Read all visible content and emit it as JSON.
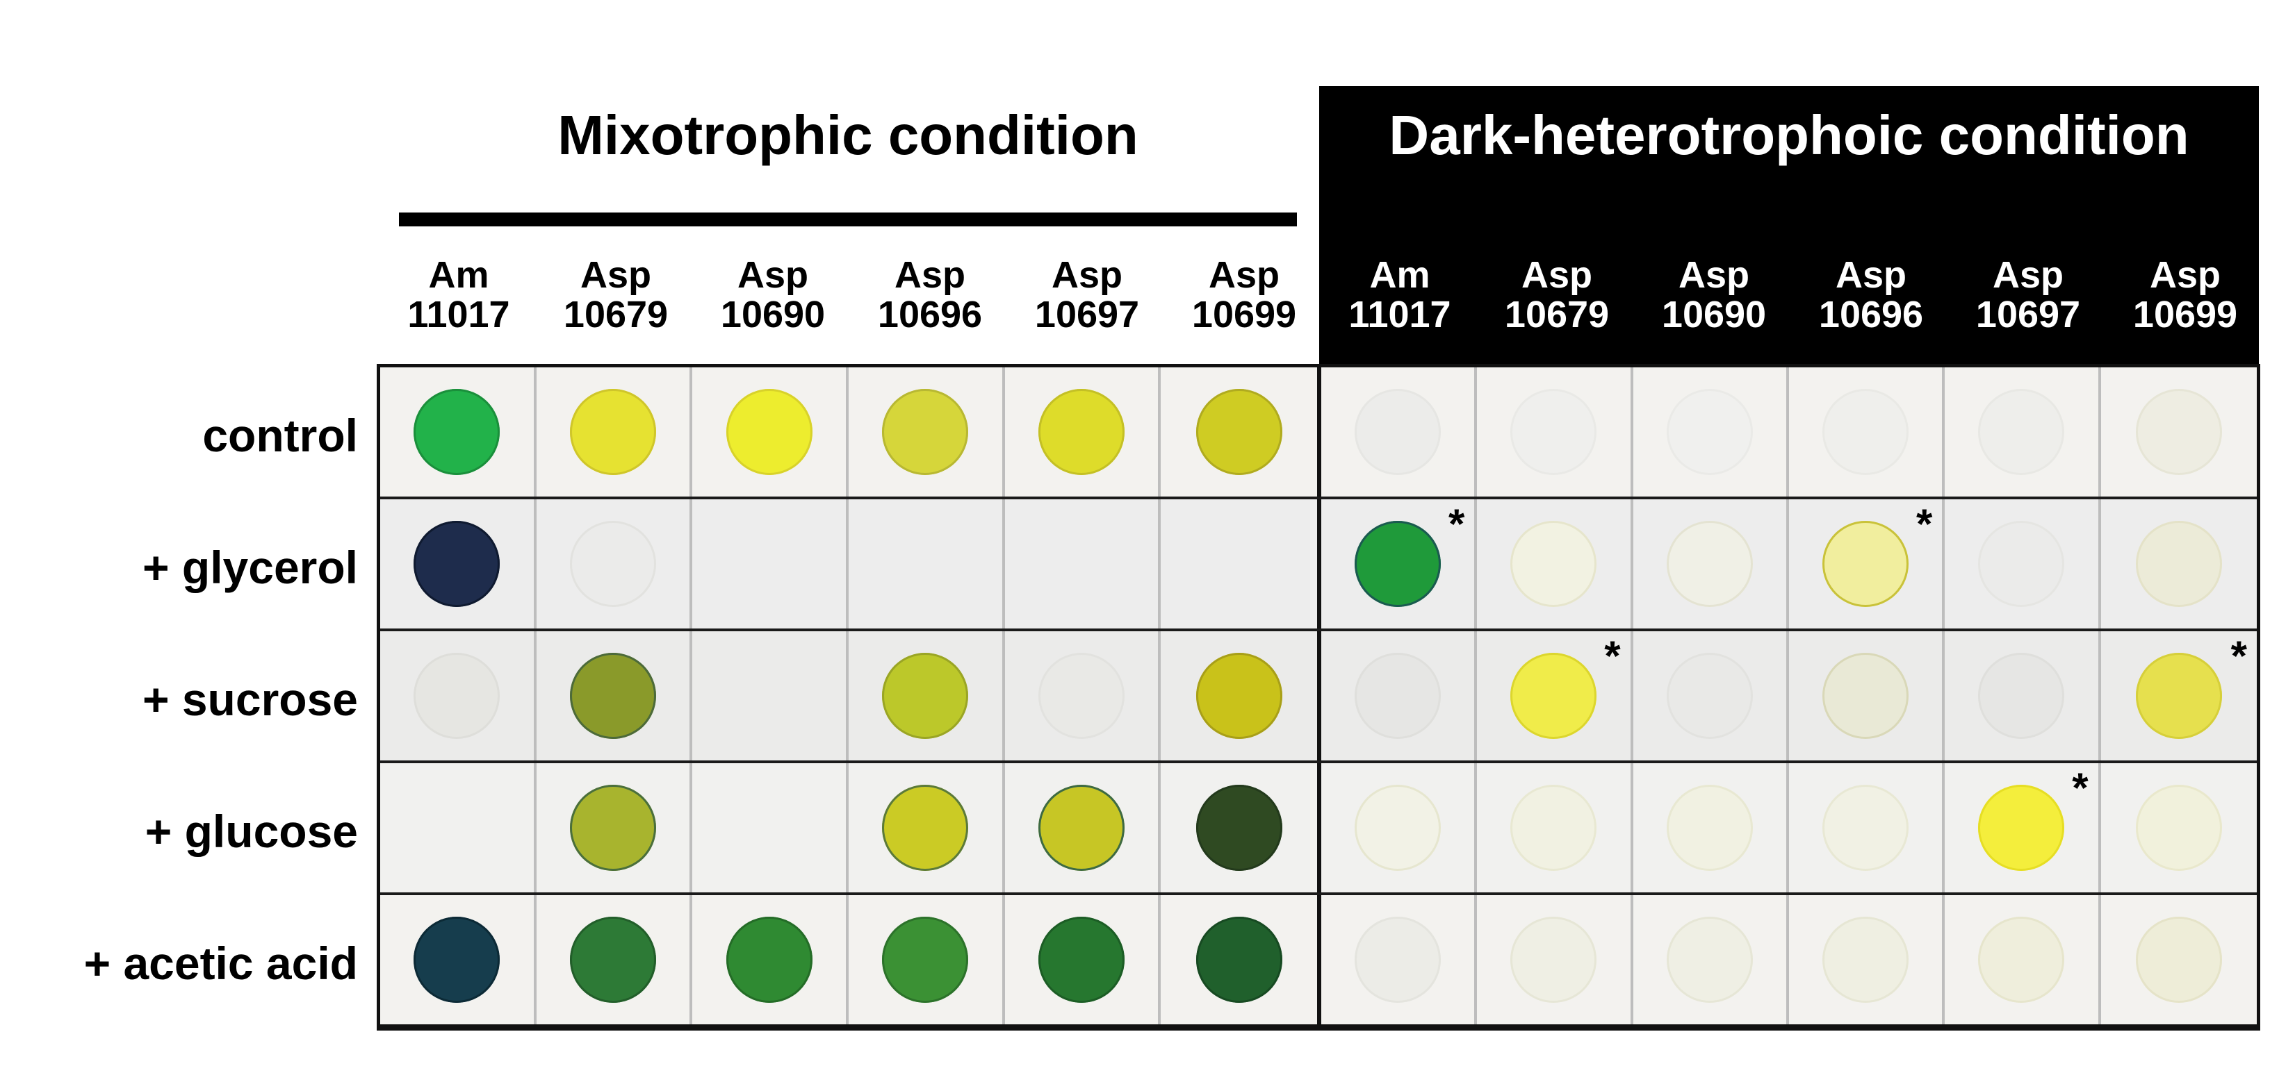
{
  "conditions": {
    "mixotrophic": "Mixotrophic condition",
    "dark": "Dark-heterotrophoic condition"
  },
  "strains": [
    {
      "genus": "Am",
      "number": "11017"
    },
    {
      "genus": "Asp",
      "number": "10679"
    },
    {
      "genus": "Asp",
      "number": "10690"
    },
    {
      "genus": "Asp",
      "number": "10696"
    },
    {
      "genus": "Asp",
      "number": "10697"
    },
    {
      "genus": "Asp",
      "number": "10699"
    }
  ],
  "treatments": [
    "control",
    "+ glycerol",
    "+ sucrose",
    "+ glucose",
    "+ acetic acid"
  ],
  "star_mark": "*",
  "row_bg": [
    "#f3f2ef",
    "#ededed",
    "#ebebea",
    "#f1f1ef",
    "#f3f2ef"
  ],
  "spots": {
    "mixotrophic": [
      [
        {
          "color": "#22b24a",
          "edge": "#1a8f3b"
        },
        {
          "color": "#e6e231",
          "edge": "#cfc62a"
        },
        {
          "color": "#eded2e",
          "edge": "#d8d22a"
        },
        {
          "color": "#d6d63a",
          "edge": "#b8b832"
        },
        {
          "color": "#dedc2a",
          "edge": "#c4c025"
        },
        {
          "color": "#cfcc23",
          "edge": "#b0ab1f"
        }
      ],
      [
        {
          "color": "#1e2c4c",
          "edge": "#0f1a30"
        },
        {
          "color": "#ebebea",
          "edge": "#e2e2df"
        },
        null,
        null,
        null,
        null
      ],
      [
        {
          "color": "#e6e6e2",
          "edge": "#dededa"
        },
        {
          "color": "#8a9a2a",
          "edge": "#4c6a3a"
        },
        null,
        {
          "color": "#bcc82a",
          "edge": "#9aa525"
        },
        {
          "color": "#e9e9e6",
          "edge": "#e2e2df"
        },
        {
          "color": "#c9c21a",
          "edge": "#a89f18"
        }
      ],
      [
        null,
        {
          "color": "#a8b42e",
          "edge": "#4a6f3c"
        },
        null,
        {
          "color": "#cbcb25",
          "edge": "#5b7a3a"
        },
        {
          "color": "#c7c625",
          "edge": "#3d6a44"
        },
        {
          "color": "#2f4a22",
          "edge": "#233a1c"
        }
      ],
      [
        {
          "color": "#163d4d",
          "edge": "#0c2a36"
        },
        {
          "color": "#2d7a36",
          "edge": "#225e2a"
        },
        {
          "color": "#2f8a32",
          "edge": "#246c27"
        },
        {
          "color": "#3b9134",
          "edge": "#2c722a"
        },
        {
          "color": "#26772f",
          "edge": "#1c5d25"
        },
        {
          "color": "#20602c",
          "edge": "#174a22"
        }
      ]
    ],
    "dark": [
      [
        {
          "color": "#ececea",
          "edge": "#e6e6e3"
        },
        {
          "color": "#efefed",
          "edge": "#e9e9e6"
        },
        {
          "color": "#f0f0ee",
          "edge": "#eaeae7"
        },
        {
          "color": "#efefec",
          "edge": "#e9e9e5"
        },
        {
          "color": "#eeeeeb",
          "edge": "#e8e8e4"
        },
        {
          "color": "#eeede2",
          "edge": "#e6e5d6"
        }
      ],
      [
        {
          "color": "#1f9a3a",
          "edge": "#1a5a50",
          "star": true
        },
        {
          "color": "#f2f2e2",
          "edge": "#e6e5cc"
        },
        {
          "color": "#f0f0e6",
          "edge": "#e4e3d2"
        },
        {
          "color": "#f1ee9e",
          "edge": "#c9c23a",
          "star": true
        },
        {
          "color": "#ebebea",
          "edge": "#e5e5e2"
        },
        {
          "color": "#ecebd8",
          "edge": "#e4e2c8"
        }
      ],
      [
        {
          "color": "#e6e6e4",
          "edge": "#dfdfdc"
        },
        {
          "color": "#f0ec4a",
          "edge": "#dcd62e",
          "star": true
        },
        {
          "color": "#e9e9e7",
          "edge": "#e2e2df"
        },
        {
          "color": "#e9e9d6",
          "edge": "#d9d8b8"
        },
        {
          "color": "#e6e6e4",
          "edge": "#dfdfdc"
        },
        {
          "color": "#e6e04e",
          "edge": "#d6cf3a",
          "star": true
        }
      ],
      [
        {
          "color": "#f2f2e6",
          "edge": "#e6e6cf"
        },
        {
          "color": "#f1f1e2",
          "edge": "#e8e8d2"
        },
        {
          "color": "#f1f1e2",
          "edge": "#e8e8d2"
        },
        {
          "color": "#f1f1e4",
          "edge": "#e8e8d4"
        },
        {
          "color": "#f4ee3c",
          "edge": "#e6de24",
          "star": true
        },
        {
          "color": "#f1f1dc",
          "edge": "#e9e8cc"
        }
      ],
      [
        {
          "color": "#ecece7",
          "edge": "#e4e4de"
        },
        {
          "color": "#efefe4",
          "edge": "#e6e6d6"
        },
        {
          "color": "#efefe4",
          "edge": "#e6e6d6"
        },
        {
          "color": "#efefe2",
          "edge": "#e6e6d4"
        },
        {
          "color": "#efeedc",
          "edge": "#e6e5cc"
        },
        {
          "color": "#eeedd8",
          "edge": "#e5e3c8"
        }
      ]
    ]
  }
}
